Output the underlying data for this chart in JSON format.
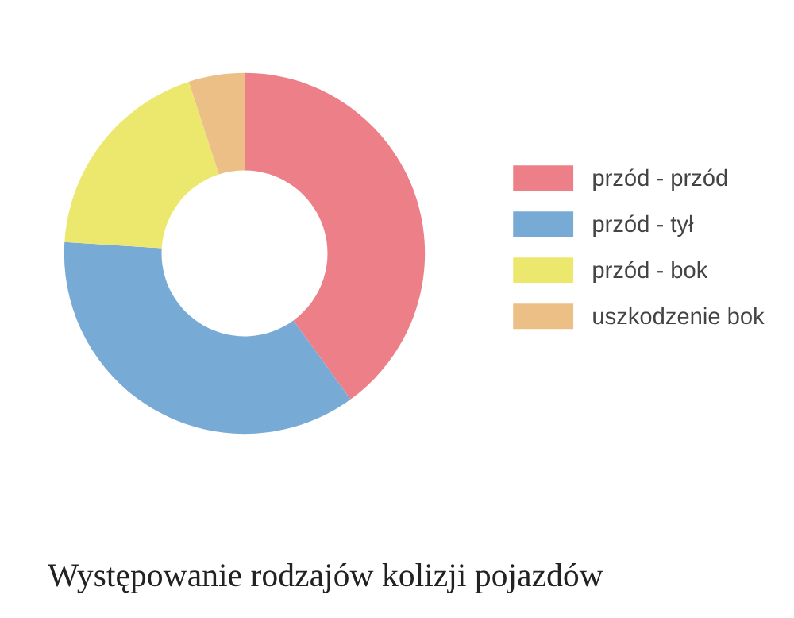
{
  "chart_data": {
    "type": "donut",
    "title": "Występowanie rodzajów kolizji pojazdów",
    "categories": [
      "przód - przód",
      "przód - tył",
      "przód - bok",
      "uszkodzenie bok"
    ],
    "values": [
      40,
      36,
      19,
      5
    ],
    "colors": [
      "#ec7f87",
      "#78aad6",
      "#ece86e",
      "#ebbf86"
    ],
    "legend": "right"
  }
}
